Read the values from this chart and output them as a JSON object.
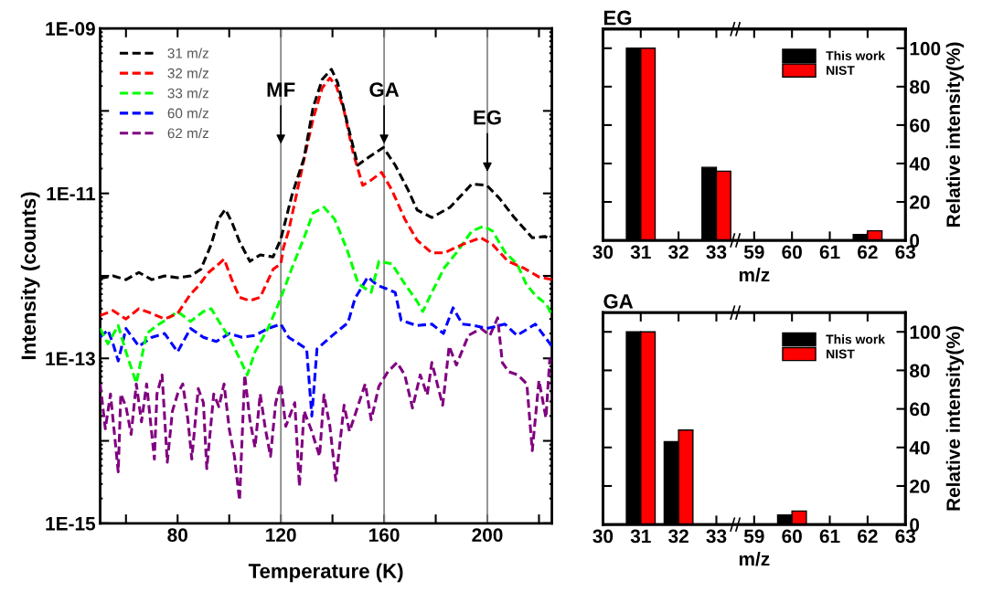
{
  "chart_data": [
    {
      "type": "line",
      "xlabel": "Temperature (K)",
      "ylabel": "Intensity (counts)",
      "log": "y",
      "line_style": "dashed",
      "legend": "top left",
      "xlim": [
        50,
        225
      ],
      "xticks": [
        {
          "value": 60,
          "label": null
        },
        80,
        {
          "value": 100,
          "label": null
        },
        120,
        {
          "value": 140,
          "label": null
        },
        160,
        {
          "value": 180,
          "label": null
        },
        200,
        {
          "value": 220,
          "label": null
        }
      ],
      "ylim": [
        1e-15,
        1e-09
      ],
      "yticks": [
        {
          "value": 1e-15,
          "label": "1E-15"
        },
        {
          "value": 1e-14,
          "label": null
        },
        {
          "value": 1e-13,
          "label": "1E-13"
        },
        {
          "value": 1e-12,
          "label": null
        },
        {
          "value": 1e-11,
          "label": "1E-11"
        },
        {
          "value": 1e-10,
          "label": null
        },
        {
          "value": 1e-09,
          "label": "1E-09"
        }
      ],
      "ref_lines": [
        {
          "axis": "x",
          "value": 120,
          "color": "#808080"
        },
        {
          "axis": "x",
          "value": 160,
          "color": "#808080"
        },
        {
          "axis": "x",
          "value": 200,
          "color": "#808080"
        }
      ],
      "annotations": [
        {
          "text": "MF",
          "x": 120,
          "y": 3.7e-11
        },
        {
          "text": "GA",
          "x": 160,
          "y": 3.7e-11
        },
        {
          "text": "EG",
          "x": 200,
          "y": 1.7e-11
        }
      ],
      "series": [
        {
          "name": "31 m/z",
          "color": "#000000",
          "x": [
            50,
            55,
            60,
            65,
            70,
            75,
            80,
            85,
            89,
            93,
            96,
            98.5,
            101,
            104,
            108,
            112,
            117,
            120,
            124.3,
            129,
            132.5,
            136,
            139.6,
            142,
            145.6,
            149.8,
            153.7,
            159.7,
            164.3,
            169.3,
            172.8,
            178.5,
            185.6,
            194,
            199.8,
            204.7,
            210.4,
            217.4,
            222.4,
            225
          ],
          "values": [
            9.3e-13,
            1e-12,
            9e-13,
            1.1e-12,
            9e-13,
            1e-12,
            9.5e-13,
            1e-12,
            1.2e-12,
            2.4e-12,
            5e-12,
            6.4e-12,
            4.5e-12,
            2.6e-12,
            1.5e-12,
            1.8e-12,
            1.7e-12,
            2.8e-12,
            9.5e-12,
            2.7e-11,
            1.1e-10,
            2.4e-10,
            3.2e-10,
            2.2e-10,
            7.4e-11,
            2.2e-11,
            2.7e-11,
            3.6e-11,
            2.2e-11,
            1.1e-11,
            6.3e-12,
            5.1e-12,
            6.8e-12,
            1.3e-11,
            1.25e-11,
            8.7e-12,
            5.1e-12,
            2.9e-12,
            3e-12,
            2.7e-12
          ]
        },
        {
          "name": "32 m/z",
          "color": "#ff0000",
          "x": [
            50,
            55,
            60,
            65,
            70,
            75,
            80,
            85,
            88,
            92,
            96,
            98,
            101,
            104,
            108,
            112,
            117,
            120,
            121,
            123,
            126,
            129,
            132.5,
            136,
            139,
            141.5,
            144.5,
            148,
            151.7,
            155,
            159,
            163,
            168,
            172.8,
            178.5,
            183.3,
            190.3,
            197.4,
            202,
            208,
            214,
            220,
            225
          ],
          "values": [
            3.3e-13,
            3.8e-13,
            3e-13,
            4e-13,
            3.5e-13,
            3e-13,
            3.5e-13,
            6e-13,
            7.5e-13,
            1.1e-12,
            1.4e-12,
            1.6e-12,
            9e-13,
            5.5e-13,
            5e-13,
            5.5e-13,
            1.2e-12,
            1.4e-12,
            2.2e-12,
            3.5e-12,
            9.5e-12,
            2.6e-11,
            8e-11,
            1.9e-10,
            2.5e-10,
            2e-10,
            1e-10,
            3.1e-11,
            1.25e-11,
            1.45e-11,
            1.8e-11,
            1.1e-11,
            4.9e-12,
            2.7e-12,
            1.9e-12,
            1.9e-12,
            2.4e-12,
            2.9e-12,
            2.4e-12,
            1.5e-12,
            1.25e-12,
            9.7e-13,
            9e-13
          ]
        },
        {
          "name": "33 m/z",
          "color": "#00ff00",
          "x": [
            50,
            53,
            57,
            60,
            64,
            68,
            72,
            76,
            80,
            85,
            90,
            93,
            97,
            100,
            104,
            107,
            110,
            115,
            119.5,
            124.3,
            129,
            132.5,
            136.7,
            140.8,
            145.6,
            150,
            155,
            158,
            163,
            168,
            172.8,
            175,
            178.5,
            183.3,
            188,
            194,
            198.6,
            202,
            207,
            211.5,
            215,
            218.6,
            223,
            225
          ],
          "values": [
            2.3e-13,
            1.5e-13,
            2.5e-13,
            1.2e-13,
            5e-14,
            2e-13,
            2.5e-13,
            3e-13,
            3.7e-13,
            2.8e-13,
            3.7e-13,
            4e-13,
            2.5e-13,
            1.8e-13,
            1e-13,
            6.3e-14,
            1.2e-13,
            2.3e-13,
            4.9e-13,
            1.25e-12,
            2.9e-12,
            5.8e-12,
            6.8e-12,
            4.9e-12,
            2.1e-12,
            8e-13,
            6.3e-13,
            1.5e-12,
            1.4e-12,
            8e-13,
            4.9e-13,
            3.7e-13,
            6.3e-13,
            1.25e-12,
            1.9e-12,
            3.5e-12,
            4e-12,
            3.5e-12,
            1.9e-12,
            1.4e-12,
            8e-13,
            5.8e-13,
            4.5e-13,
            3.3e-13
          ]
        },
        {
          "name": "60 m/z",
          "color": "#0000ff",
          "x": [
            50,
            53,
            55,
            57,
            60,
            65,
            70,
            75,
            80,
            85,
            90,
            95,
            100,
            105,
            110,
            115,
            120,
            123,
            127,
            130,
            132,
            134,
            140,
            146,
            148.7,
            151,
            153.7,
            157.3,
            160.8,
            164.3,
            166.6,
            172.5,
            178.5,
            183,
            186.7,
            190.3,
            195,
            199.8,
            206.8,
            211.5,
            218.6,
            223,
            225
          ],
          "values": [
            1.8e-13,
            2.2e-13,
            1.5e-13,
            9.3e-14,
            2.3e-13,
            1.4e-13,
            1.8e-13,
            2e-13,
            1.2e-13,
            2.3e-13,
            1.8e-13,
            1.6e-13,
            2e-13,
            1.8e-13,
            1.9e-13,
            2.3e-13,
            2.6e-13,
            1.8e-13,
            1.5e-13,
            1.3e-13,
            2e-14,
            1.3e-13,
            1.9e-13,
            2.7e-13,
            5.3e-13,
            7e-13,
            9.7e-13,
            7.7e-13,
            7e-13,
            6.3e-13,
            2.9e-13,
            2.5e-13,
            2.6e-13,
            2e-13,
            4.1e-13,
            2.6e-13,
            2.5e-13,
            2.3e-13,
            2.6e-13,
            1.9e-13,
            2.6e-13,
            1.7e-13,
            1.4e-13
          ]
        },
        {
          "name": "62 m/z",
          "color": "#800080",
          "x": [
            50,
            52,
            54,
            57,
            58,
            60,
            62,
            64,
            66,
            68,
            71,
            72,
            74,
            76,
            78,
            80,
            82,
            84,
            85.5,
            88,
            90,
            91.3,
            94,
            96,
            98,
            100,
            102,
            104,
            106,
            108,
            110,
            112,
            114,
            116,
            118,
            120,
            121.9,
            125.4,
            127.2,
            129,
            132,
            135,
            136.7,
            139,
            141.3,
            144.5,
            146.6,
            152.7,
            155,
            158,
            161.5,
            165,
            168,
            171,
            174,
            176.7,
            178.5,
            182.7,
            185.2,
            188,
            192.7,
            197.6,
            201,
            204,
            205.8,
            208.2,
            211.8,
            215.3,
            217.4,
            220,
            222.7,
            224.2
          ],
          "values": [
            4.9e-14,
            1.4e-14,
            3.7e-14,
            4.2e-15,
            3.7e-14,
            2.6e-14,
            1.2e-14,
            4.9e-14,
            1.7e-14,
            4.9e-14,
            6e-15,
            3.7e-14,
            6.3e-14,
            5.5e-15,
            2.3e-14,
            3.7e-14,
            4.9e-14,
            1.8e-14,
            6e-15,
            4.3e-14,
            2.9e-14,
            4.6e-15,
            3.7e-14,
            2.6e-14,
            4.9e-14,
            1.4e-14,
            6.5e-15,
            1.9e-15,
            6.3e-14,
            1.8e-14,
            8.3e-15,
            3.7e-14,
            1.4e-14,
            6.5e-15,
            2.9e-14,
            4.9e-14,
            1.5e-14,
            2.9e-14,
            2.8e-15,
            2.3e-14,
            1.3e-14,
            6.5e-15,
            3.6e-14,
            1.5e-14,
            3.3e-15,
            2.7e-14,
            1.3e-14,
            4.9e-14,
            1.8e-14,
            4.6e-14,
            6.9e-14,
            8.9e-14,
            6.3e-14,
            2.5e-14,
            6.3e-14,
            3.6e-14,
            8.9e-14,
            2.7e-14,
            1.4e-13,
            8.3e-14,
            1.9e-13,
            2.3e-13,
            1.9e-13,
            3.1e-13,
            8.9e-14,
            6.9e-14,
            6.3e-14,
            4.9e-14,
            7.6e-15,
            5.4e-14,
            1.9e-14,
            1e-13
          ]
        }
      ]
    },
    {
      "type": "bar",
      "title": "EG",
      "xlabel": "m/z",
      "y2label": "Relative intensity(%)",
      "legend": "top right",
      "categories": [
        "30",
        "31",
        "32",
        "33",
        "59",
        "60",
        "61",
        "62",
        "63"
      ],
      "y2lim": [
        0,
        110
      ],
      "y2ticks": [
        0,
        20,
        40,
        60,
        80,
        100
      ],
      "series": [
        {
          "name": "This work",
          "color": "#000000",
          "axis": "y2",
          "values": [
            null,
            100,
            null,
            38,
            null,
            null,
            null,
            3,
            null
          ]
        },
        {
          "name": "NIST",
          "color": "#ff0000",
          "axis": "y2",
          "values": [
            null,
            100,
            null,
            36,
            null,
            null,
            null,
            5,
            null
          ]
        }
      ]
    },
    {
      "type": "bar",
      "title": "GA",
      "xlabel": "m/z",
      "y2label": "Relative intensity(%)",
      "legend": "top right",
      "categories": [
        "30",
        "31",
        "32",
        "33",
        "59",
        "60",
        "61",
        "62",
        "63"
      ],
      "y2lim": [
        0,
        110
      ],
      "y2ticks": [
        0,
        20,
        40,
        60,
        80,
        100
      ],
      "series": [
        {
          "name": "This work",
          "color": "#000000",
          "axis": "y2",
          "values": [
            null,
            100,
            43,
            null,
            null,
            5,
            null,
            null,
            null
          ]
        },
        {
          "name": "NIST",
          "color": "#ff0000",
          "axis": "y2",
          "values": [
            null,
            100,
            49,
            null,
            null,
            7,
            null,
            null,
            null
          ]
        }
      ]
    }
  ]
}
